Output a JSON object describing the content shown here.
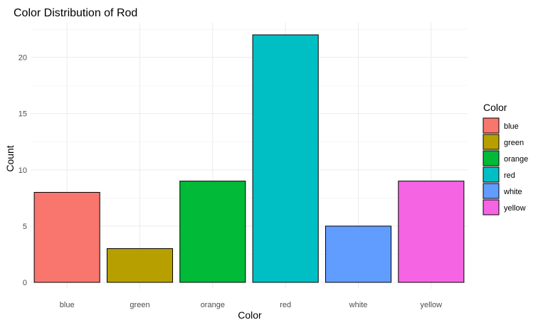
{
  "chart_data": {
    "type": "bar",
    "title": "Color Distribution of Rod",
    "xlabel": "Color",
    "ylabel": "Count",
    "categories": [
      "blue",
      "green",
      "orange",
      "red",
      "white",
      "yellow"
    ],
    "values": [
      8,
      3,
      9,
      22,
      5,
      9
    ],
    "colors": [
      "#F8766D",
      "#B79F00",
      "#00BA38",
      "#00BFC4",
      "#619CFF",
      "#F564E3"
    ],
    "ylim": [
      0,
      23.1
    ],
    "yticks": [
      0,
      5,
      10,
      15,
      20
    ],
    "grid": true,
    "legend": {
      "title": "Color",
      "placement": "right",
      "entries": [
        "blue",
        "green",
        "orange",
        "red",
        "white",
        "yellow"
      ]
    }
  }
}
